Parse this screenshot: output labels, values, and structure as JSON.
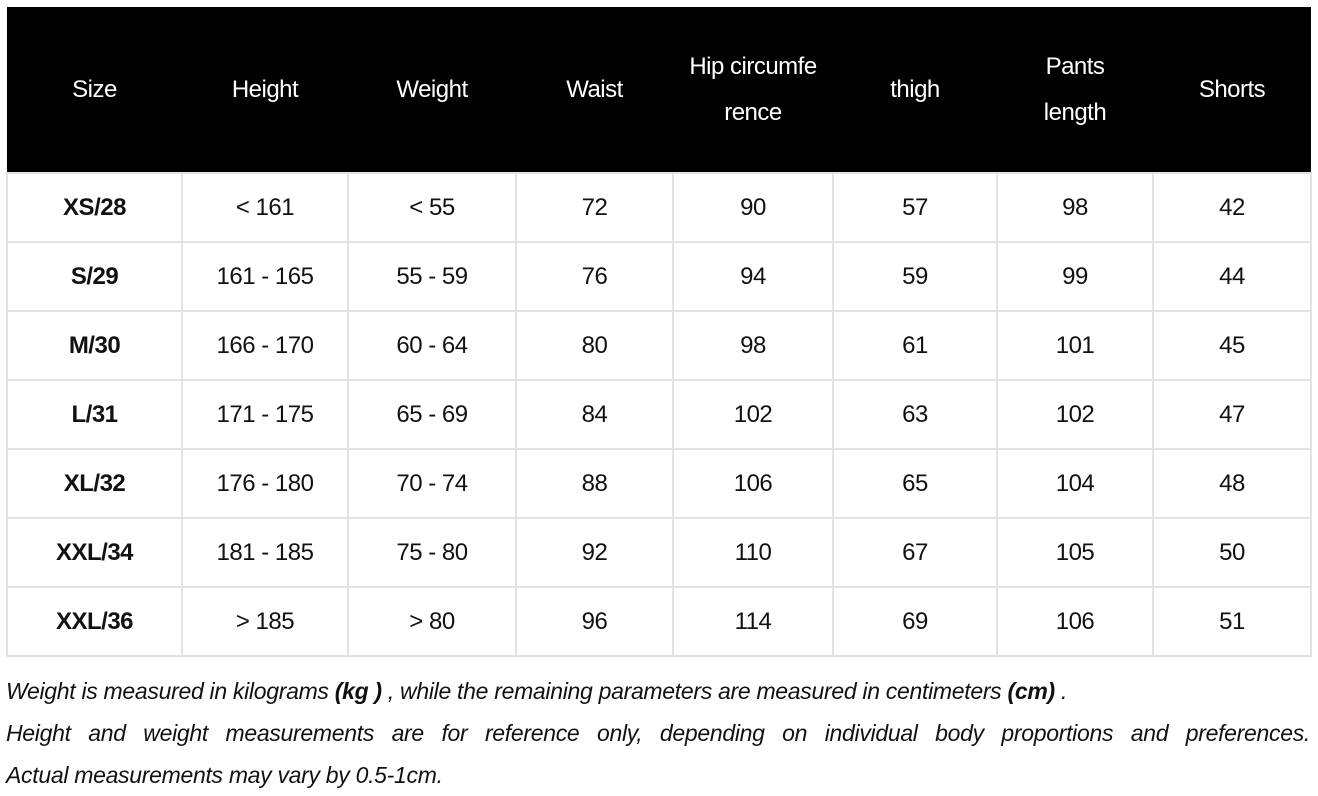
{
  "headers": [
    "Size",
    "Height",
    "Weight",
    "Waist",
    "Hip circumference",
    "thigh",
    "Pants length",
    "Shorts"
  ],
  "rows": [
    [
      "XS/28",
      "< 161",
      "< 55",
      "72",
      "90",
      "57",
      "98",
      "42"
    ],
    [
      "S/29",
      "161 - 165",
      "55 - 59",
      "76",
      "94",
      "59",
      "99",
      "44"
    ],
    [
      "M/30",
      "166 - 170",
      "60 - 64",
      "80",
      "98",
      "61",
      "101",
      "45"
    ],
    [
      "L/31",
      "171 - 175",
      "65 - 69",
      "84",
      "102",
      "63",
      "102",
      "47"
    ],
    [
      "XL/32",
      "176 - 180",
      "70 - 74",
      "88",
      "106",
      "65",
      "104",
      "48"
    ],
    [
      "XXL/34",
      "181 - 185",
      "75 - 80",
      "92",
      "110",
      "67",
      "105",
      "50"
    ],
    [
      "XXL/36",
      "> 185",
      "> 80",
      "96",
      "114",
      "69",
      "106",
      "51"
    ]
  ],
  "notes": {
    "line1_a": "Weight is measured in kilograms ",
    "line1_kg": "(kg )",
    "line1_b": " , while the remaining parameters are measured in centimeters ",
    "line1_cm": "(cm)",
    "line1_c": " .",
    "line2": "Height and weight measurements are for reference only, depending on individual body proportions and preferences.",
    "line3": "Actual measurements may vary by 0.5-1cm."
  },
  "colors": {
    "header_bg": "#000000",
    "header_text": "#ffffff",
    "border": "#e2e2e2"
  }
}
